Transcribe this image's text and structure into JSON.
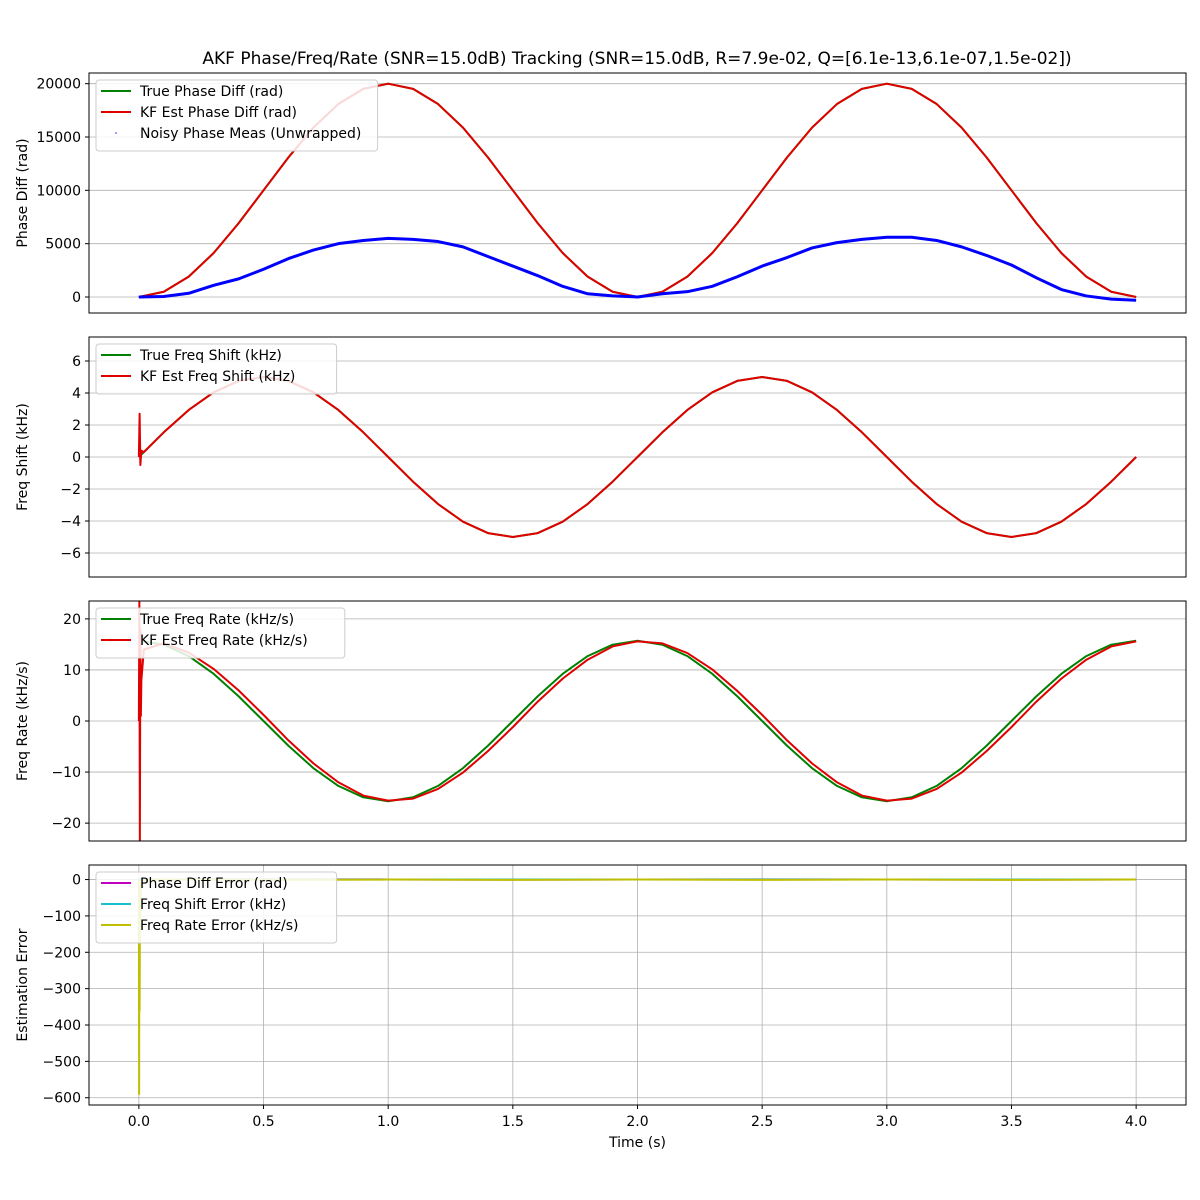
{
  "figure_title": "AKF Phase/Freq/Rate (SNR=15.0dB) Tracking (SNR=15.0dB, R=7.9e-02, Q=[6.1e-13,6.1e-07,1.5e-02])",
  "x_axis": {
    "label": "Time (s)",
    "xlim": [
      -0.2,
      4.2
    ],
    "ticks": [
      0.0,
      0.5,
      1.0,
      1.5,
      2.0,
      2.5,
      3.0,
      3.5,
      4.0
    ],
    "tick_labels": [
      "0.0",
      "0.5",
      "1.0",
      "1.5",
      "2.0",
      "2.5",
      "3.0",
      "3.5",
      "4.0"
    ]
  },
  "colors": {
    "true": "#008000",
    "estimate": "#e00000",
    "noisy": "#0000ff",
    "phase_error": "#bf00bf",
    "freq_error": "#17becf",
    "rate_error": "#bfbf00",
    "grid": "#b0b0b0"
  },
  "chart_data": [
    {
      "type": "line",
      "ylabel": "Phase Diff (rad)",
      "ylim": [
        -1500,
        21000
      ],
      "yticks": [
        0,
        5000,
        10000,
        15000,
        20000
      ],
      "ytick_labels": [
        "0",
        "5000",
        "10000",
        "15000",
        "20000"
      ],
      "grid": "y",
      "legend_position": "upper-left",
      "series": [
        {
          "name": "True Phase Diff (rad)",
          "color_key": "true",
          "x": [
            0,
            0.1,
            0.2,
            0.3,
            0.4,
            0.5,
            0.6,
            0.7,
            0.8,
            0.9,
            1.0,
            1.1,
            1.2,
            1.3,
            1.4,
            1.5,
            1.6,
            1.7,
            1.8,
            1.9,
            2.0,
            2.1,
            2.2,
            2.3,
            2.4,
            2.5,
            2.6,
            2.7,
            2.8,
            2.9,
            3.0,
            3.1,
            3.2,
            3.3,
            3.4,
            3.5,
            3.6,
            3.7,
            3.8,
            3.9,
            4.0
          ],
          "y": [
            0,
            489,
            1910,
            4122,
            6910,
            10000,
            13090,
            15878,
            18090,
            19511,
            20000,
            19511,
            18090,
            15878,
            13090,
            10000,
            6910,
            4122,
            1910,
            489,
            0,
            489,
            1910,
            4122,
            6910,
            10000,
            13090,
            15878,
            18090,
            19511,
            20000,
            19511,
            18090,
            15878,
            13090,
            10000,
            6910,
            4122,
            1910,
            489,
            0
          ]
        },
        {
          "name": "KF Est Phase Diff (rad)",
          "color_key": "estimate",
          "x": [
            0,
            0.1,
            0.2,
            0.3,
            0.4,
            0.5,
            0.6,
            0.7,
            0.8,
            0.9,
            1.0,
            1.1,
            1.2,
            1.3,
            1.4,
            1.5,
            1.6,
            1.7,
            1.8,
            1.9,
            2.0,
            2.1,
            2.2,
            2.3,
            2.4,
            2.5,
            2.6,
            2.7,
            2.8,
            2.9,
            3.0,
            3.1,
            3.2,
            3.3,
            3.4,
            3.5,
            3.6,
            3.7,
            3.8,
            3.9,
            4.0
          ],
          "y": [
            0,
            489,
            1910,
            4122,
            6910,
            10000,
            13090,
            15878,
            18090,
            19511,
            20000,
            19511,
            18090,
            15878,
            13090,
            10000,
            6910,
            4122,
            1910,
            489,
            0,
            489,
            1910,
            4122,
            6910,
            10000,
            13090,
            15878,
            18090,
            19511,
            20000,
            19511,
            18090,
            15878,
            13090,
            10000,
            6910,
            4122,
            1910,
            489,
            0
          ]
        },
        {
          "name": "Noisy Phase Meas (Unwrapped)",
          "color_key": "noisy",
          "style": "points",
          "x": [
            0,
            0.1,
            0.2,
            0.3,
            0.4,
            0.5,
            0.6,
            0.7,
            0.8,
            0.9,
            1.0,
            1.1,
            1.2,
            1.3,
            1.4,
            1.5,
            1.6,
            1.7,
            1.8,
            1.9,
            2.0,
            2.1,
            2.2,
            2.3,
            2.4,
            2.5,
            2.6,
            2.7,
            2.8,
            2.9,
            3.0,
            3.1,
            3.2,
            3.3,
            3.4,
            3.5,
            3.6,
            3.7,
            3.8,
            3.9,
            4.0
          ],
          "y": [
            0,
            50,
            350,
            1100,
            1700,
            2600,
            3600,
            4400,
            5000,
            5300,
            5500,
            5400,
            5200,
            4700,
            3800,
            2900,
            2000,
            1000,
            300,
            100,
            0,
            300,
            500,
            1000,
            1900,
            2900,
            3700,
            4600,
            5100,
            5400,
            5600,
            5600,
            5300,
            4700,
            3900,
            3000,
            1800,
            700,
            100,
            -200,
            -300
          ]
        }
      ]
    },
    {
      "type": "line",
      "ylabel": "Freq Shift (kHz)",
      "ylim": [
        -7.5,
        7.5
      ],
      "yticks": [
        -6,
        -4,
        -2,
        0,
        2,
        4,
        6
      ],
      "ytick_labels": [
        "−6",
        "−4",
        "−2",
        "0",
        "2",
        "4",
        "6"
      ],
      "grid": "y",
      "legend_position": "upper-left",
      "series": [
        {
          "name": "True Freq Shift (kHz)",
          "color_key": "true",
          "x": [
            0,
            0.1,
            0.2,
            0.3,
            0.4,
            0.5,
            0.6,
            0.7,
            0.8,
            0.9,
            1.0,
            1.1,
            1.2,
            1.3,
            1.4,
            1.5,
            1.6,
            1.7,
            1.8,
            1.9,
            2.0,
            2.1,
            2.2,
            2.3,
            2.4,
            2.5,
            2.6,
            2.7,
            2.8,
            2.9,
            3.0,
            3.1,
            3.2,
            3.3,
            3.4,
            3.5,
            3.6,
            3.7,
            3.8,
            3.9,
            4.0
          ],
          "y": [
            0,
            1.545,
            2.939,
            4.045,
            4.755,
            5.0,
            4.755,
            4.045,
            2.939,
            1.545,
            0,
            -1.545,
            -2.939,
            -4.045,
            -4.755,
            -5.0,
            -4.755,
            -4.045,
            -2.939,
            -1.545,
            0,
            1.545,
            2.939,
            4.045,
            4.755,
            5.0,
            4.755,
            4.045,
            2.939,
            1.545,
            0,
            -1.545,
            -2.939,
            -4.045,
            -4.755,
            -5.0,
            -4.755,
            -4.045,
            -2.939,
            -1.545,
            0
          ]
        },
        {
          "name": "KF Est Freq Shift (kHz)",
          "color_key": "estimate",
          "x": [
            0,
            0.003,
            0.006,
            0.01,
            0.02,
            0.1,
            0.2,
            0.3,
            0.4,
            0.5,
            0.6,
            0.7,
            0.8,
            0.9,
            1.0,
            1.1,
            1.2,
            1.3,
            1.4,
            1.5,
            1.6,
            1.7,
            1.8,
            1.9,
            2.0,
            2.1,
            2.2,
            2.3,
            2.4,
            2.5,
            2.6,
            2.7,
            2.8,
            2.9,
            3.0,
            3.1,
            3.2,
            3.3,
            3.4,
            3.5,
            3.6,
            3.7,
            3.8,
            3.9,
            4.0
          ],
          "y": [
            0,
            2.7,
            -0.5,
            0.4,
            0.3,
            1.545,
            2.939,
            4.045,
            4.755,
            5.0,
            4.755,
            4.045,
            2.939,
            1.545,
            0,
            -1.545,
            -2.939,
            -4.045,
            -4.755,
            -5.0,
            -4.755,
            -4.045,
            -2.939,
            -1.545,
            0,
            1.545,
            2.939,
            4.045,
            4.755,
            5.0,
            4.755,
            4.045,
            2.939,
            1.545,
            0,
            -1.545,
            -2.939,
            -4.045,
            -4.755,
            -5.0,
            -4.755,
            -4.045,
            -2.939,
            -1.545,
            0
          ]
        }
      ]
    },
    {
      "type": "line",
      "ylabel": "Freq Rate (kHz/s)",
      "ylim": [
        -23.5,
        23.5
      ],
      "yticks": [
        -20,
        -10,
        0,
        10,
        20
      ],
      "ytick_labels": [
        "−20",
        "−10",
        "0",
        "10",
        "20"
      ],
      "grid": "y",
      "legend_position": "upper-left",
      "series": [
        {
          "name": "True Freq Rate (kHz/s)",
          "color_key": "true",
          "x": [
            0,
            0.1,
            0.2,
            0.3,
            0.4,
            0.5,
            0.6,
            0.7,
            0.8,
            0.9,
            1.0,
            1.1,
            1.2,
            1.3,
            1.4,
            1.5,
            1.6,
            1.7,
            1.8,
            1.9,
            2.0,
            2.1,
            2.2,
            2.3,
            2.4,
            2.5,
            2.6,
            2.7,
            2.8,
            2.9,
            3.0,
            3.1,
            3.2,
            3.3,
            3.4,
            3.5,
            3.6,
            3.7,
            3.8,
            3.9,
            4.0
          ],
          "y": [
            15.71,
            14.94,
            12.71,
            9.23,
            4.85,
            0,
            -4.85,
            -9.23,
            -12.71,
            -14.94,
            -15.71,
            -14.94,
            -12.71,
            -9.23,
            -4.85,
            0,
            4.85,
            9.23,
            12.71,
            14.94,
            15.71,
            14.94,
            12.71,
            9.23,
            4.85,
            0,
            -4.85,
            -9.23,
            -12.71,
            -14.94,
            -15.71,
            -14.94,
            -12.71,
            -9.23,
            -4.85,
            0,
            4.85,
            9.23,
            12.71,
            14.94,
            15.71
          ]
        },
        {
          "name": "KF Est Freq Rate (kHz/s)",
          "color_key": "estimate",
          "x": [
            0,
            0.002,
            0.004,
            0.006,
            0.008,
            0.01,
            0.02,
            0.1,
            0.2,
            0.3,
            0.4,
            0.5,
            0.6,
            0.7,
            0.8,
            0.9,
            1.0,
            1.1,
            1.2,
            1.3,
            1.4,
            1.5,
            1.6,
            1.7,
            1.8,
            1.9,
            2.0,
            2.1,
            2.2,
            2.3,
            2.4,
            2.5,
            2.6,
            2.7,
            2.8,
            2.9,
            3.0,
            3.1,
            3.2,
            3.3,
            3.4,
            3.5,
            3.6,
            3.7,
            3.8,
            3.9,
            4.0
          ],
          "y": [
            0,
            23.5,
            -23.5,
            18,
            1,
            8,
            14,
            15.2,
            13.4,
            10.2,
            6.0,
            1.2,
            -3.8,
            -8.3,
            -12.0,
            -14.6,
            -15.6,
            -15.2,
            -13.3,
            -10.1,
            -5.9,
            -1.2,
            3.8,
            8.3,
            12.0,
            14.6,
            15.6,
            15.2,
            13.3,
            10.1,
            5.9,
            1.2,
            -3.8,
            -8.3,
            -12.0,
            -14.6,
            -15.6,
            -15.2,
            -13.3,
            -10.1,
            -5.9,
            -1.2,
            3.8,
            8.3,
            12.0,
            14.6,
            15.6
          ]
        }
      ]
    },
    {
      "type": "line",
      "ylabel": "Estimation Error",
      "ylim": [
        -620,
        40
      ],
      "yticks": [
        -600,
        -500,
        -400,
        -300,
        -200,
        -100,
        0
      ],
      "ytick_labels": [
        "−600",
        "−500",
        "−400",
        "−300",
        "−200",
        "−100",
        "0"
      ],
      "grid": "xy",
      "legend_position": "upper-left",
      "series": [
        {
          "name": "Phase Diff Error (rad)",
          "color_key": "phase_error",
          "x": [
            0,
            0.5,
            1.0,
            1.5,
            2.0,
            2.5,
            3.0,
            3.5,
            4.0
          ],
          "y": [
            0,
            0.5,
            0.3,
            -0.2,
            0.1,
            0.4,
            0.2,
            -0.1,
            0
          ]
        },
        {
          "name": "Freq Shift Error (kHz)",
          "color_key": "freq_error",
          "x": [
            0,
            0.002,
            0.004,
            0.01,
            0.5,
            1.0,
            1.5,
            2.0,
            2.5,
            3.0,
            3.5,
            4.0
          ],
          "y": [
            0,
            -2.7,
            0.5,
            0,
            0,
            0,
            0,
            0,
            0,
            0,
            0,
            0
          ]
        },
        {
          "name": "Freq Rate Error (kHz/s)",
          "color_key": "rate_error",
          "x": [
            0,
            0.001,
            0.002,
            0.003,
            0.004,
            0.006,
            0.008,
            0.01,
            0.02,
            0.1,
            0.5,
            1.0,
            1.5,
            2.0,
            2.5,
            3.0,
            3.5,
            4.0
          ],
          "y": [
            0,
            -590,
            -20,
            -360,
            -150,
            -60,
            -20,
            -8,
            -2,
            0,
            -1,
            0,
            -1,
            0,
            -1,
            0,
            -1,
            0
          ]
        }
      ]
    }
  ]
}
